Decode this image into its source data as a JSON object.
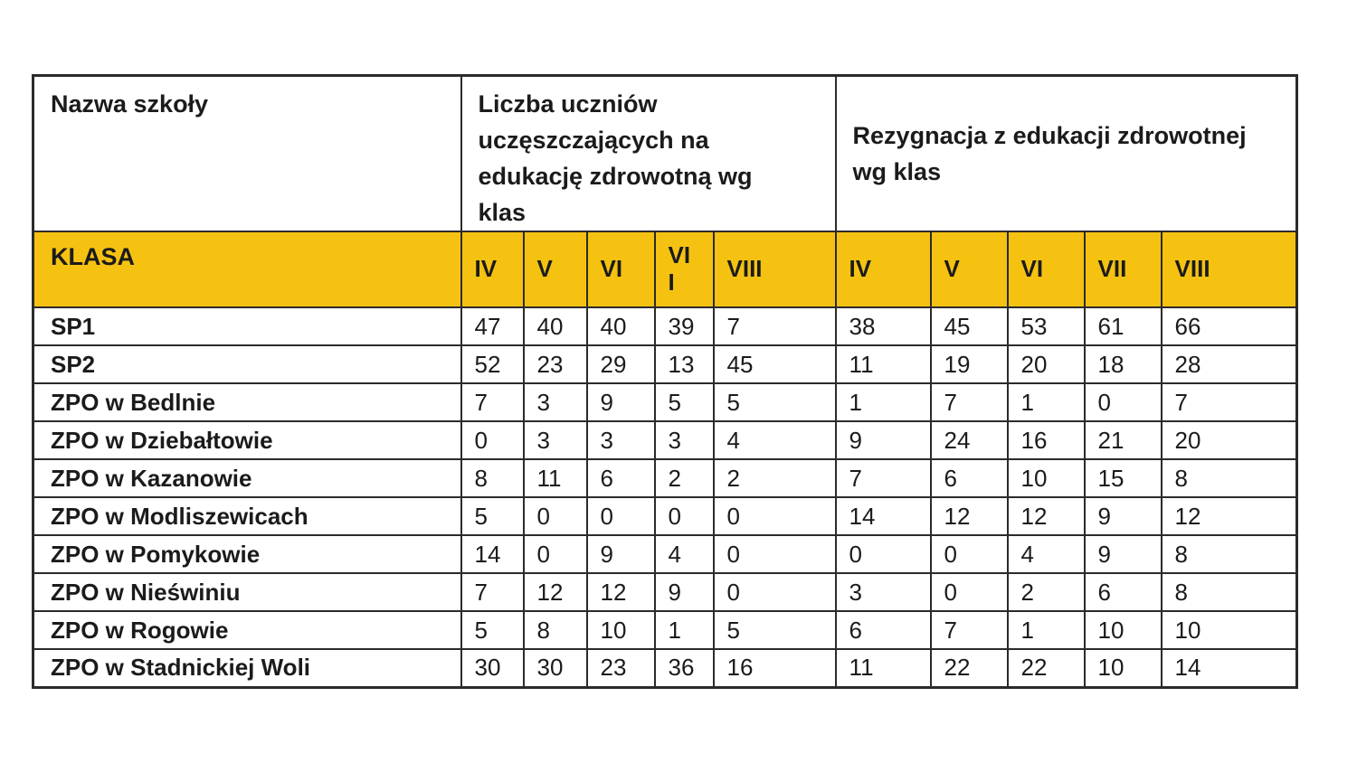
{
  "colors": {
    "header_yellow": "#F5C211",
    "border": "#2b2b2b",
    "text": "#1b1b1b"
  },
  "table": {
    "header": {
      "school": "Nazwa szkoły",
      "attending": "Liczba uczniów\nuczęszczających na\nedukację zdrowotną wg\nklas",
      "resignation": "Rezygnacja z edukacji zdrowotnej\nwg klas"
    },
    "klasa_row": {
      "label": "KLASA",
      "attending_classes": [
        "IV",
        "V",
        "VI",
        "VI\nI",
        "VIII"
      ],
      "resignation_classes": [
        "IV",
        "V",
        "VI",
        "VII",
        "VIII"
      ]
    },
    "rows": [
      {
        "school": "SP1",
        "attending": [
          47,
          40,
          40,
          39,
          7
        ],
        "resignation": [
          38,
          45,
          53,
          61,
          66
        ]
      },
      {
        "school": "SP2",
        "attending": [
          52,
          23,
          29,
          13,
          45
        ],
        "resignation": [
          11,
          19,
          20,
          18,
          28
        ]
      },
      {
        "school": "ZPO w Bedlnie",
        "attending": [
          7,
          3,
          9,
          5,
          5
        ],
        "resignation": [
          1,
          7,
          1,
          0,
          7
        ]
      },
      {
        "school": "ZPO w Dziebałtowie",
        "attending": [
          0,
          3,
          3,
          3,
          4
        ],
        "resignation": [
          9,
          24,
          16,
          21,
          20
        ]
      },
      {
        "school": "ZPO w Kazanowie",
        "attending": [
          8,
          11,
          6,
          2,
          2
        ],
        "resignation": [
          7,
          6,
          10,
          15,
          8
        ]
      },
      {
        "school": "ZPO w Modliszewicach",
        "attending": [
          5,
          0,
          0,
          0,
          0
        ],
        "resignation": [
          14,
          12,
          12,
          9,
          12
        ]
      },
      {
        "school": "ZPO w Pomykowie",
        "attending": [
          14,
          0,
          9,
          4,
          0
        ],
        "resignation": [
          0,
          0,
          4,
          9,
          8
        ]
      },
      {
        "school": "ZPO w Nieświniu",
        "attending": [
          7,
          12,
          12,
          9,
          0
        ],
        "resignation": [
          3,
          0,
          2,
          6,
          8
        ]
      },
      {
        "school": "ZPO w Rogowie",
        "attending": [
          5,
          8,
          10,
          1,
          5
        ],
        "resignation": [
          6,
          7,
          1,
          10,
          10
        ]
      },
      {
        "school": "ZPO w Stadnickiej Woli",
        "attending": [
          30,
          30,
          23,
          36,
          16
        ],
        "resignation": [
          11,
          22,
          22,
          10,
          14
        ]
      }
    ]
  }
}
